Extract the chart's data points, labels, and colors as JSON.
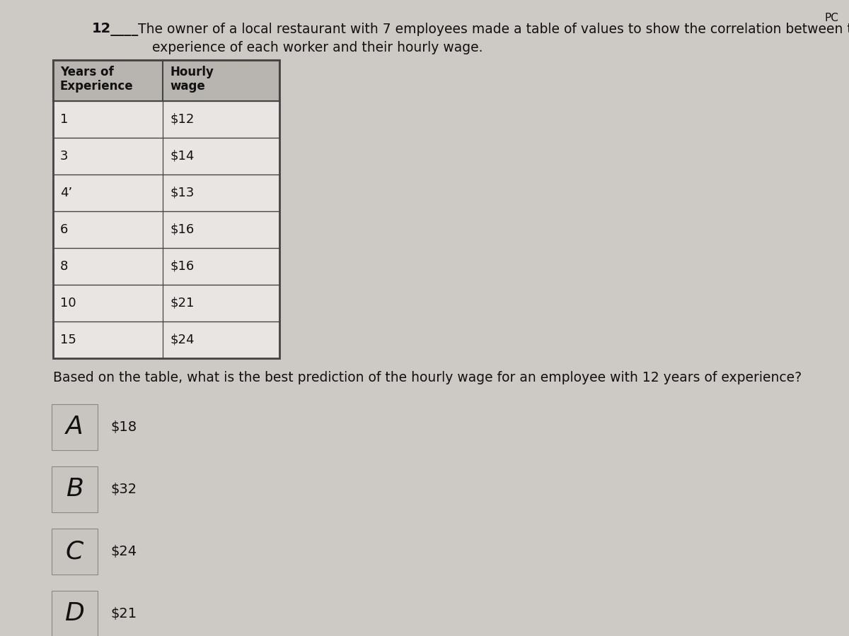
{
  "question_number": "12",
  "underline": "____",
  "question_text_line1": "The owner of a local restaurant with 7 employees made a table of values to show the correlation between th",
  "question_text_line2": "experience of each worker and their hourly wage.",
  "col1_header_line1": "Years of",
  "col1_header_line2": "Experience",
  "col2_header_line1": "Hourly",
  "col2_header_line2": "wage",
  "table_data": [
    [
      "1",
      "$12"
    ],
    [
      "3",
      "$14"
    ],
    [
      "4’",
      "$13"
    ],
    [
      "6",
      "$16"
    ],
    [
      "8",
      "$16"
    ],
    [
      "10",
      "$21"
    ],
    [
      "15",
      "$24"
    ]
  ],
  "sub_question": "Based on the table, what is the best prediction of the hourly wage for an employee with 12 years of experience?",
  "choices": [
    [
      "A",
      "$18"
    ],
    [
      "B",
      "$32"
    ],
    [
      "C",
      "$24"
    ],
    [
      "D",
      "$21"
    ]
  ],
  "background_color": "#cdc9c5",
  "table_header_bg": "#b8b4b0",
  "table_row_bg": "#e8e5e2",
  "table_border_color": "#444444",
  "text_color": "#111111",
  "choice_box_bg": "#c8c4c0",
  "choice_border_color": "#888888",
  "pc_text": "PC"
}
